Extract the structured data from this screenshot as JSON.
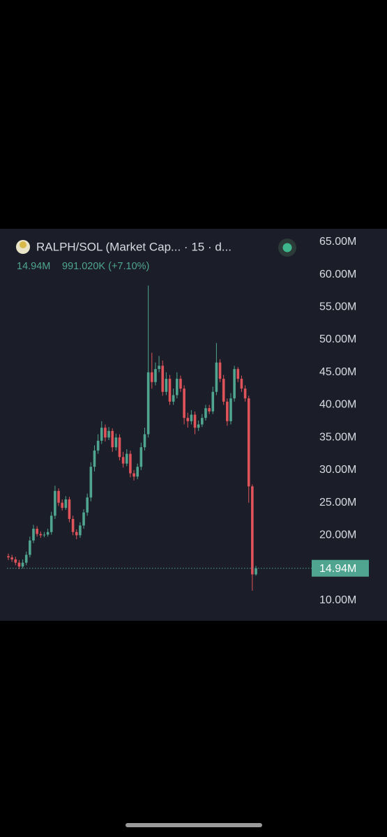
{
  "chart_data": {
    "type": "candlestick",
    "title": "RALPH/SOL (Market Cap... · 15 · d...",
    "change": "991.020K (+7.10%)",
    "last_price": {
      "value": 14.94,
      "label": "14.94M"
    },
    "up_color": "#4fa58f",
    "down_color": "#e0535a",
    "ylim": [
      7.1,
      66.8
    ],
    "yticks": [
      {
        "value": 10,
        "label": "10.00M"
      },
      {
        "value": 20,
        "label": "20.00M"
      },
      {
        "value": 25,
        "label": "25.00M"
      },
      {
        "value": 30,
        "label": "30.00M"
      },
      {
        "value": 35,
        "label": "35.00M"
      },
      {
        "value": 40,
        "label": "40.00M"
      },
      {
        "value": 45,
        "label": "45.00M"
      },
      {
        "value": 50,
        "label": "50.00M"
      },
      {
        "value": 55,
        "label": "55.00M"
      },
      {
        "value": 60,
        "label": "60.00M"
      },
      {
        "value": 65,
        "label": "65.00M"
      }
    ],
    "open": [
      16.8,
      16.6,
      16.3,
      15.8,
      15.2,
      15.8,
      17.0,
      19.2,
      21.0,
      20.2,
      20.0,
      20.1,
      20.5,
      23.0,
      26.8,
      25.0,
      24.2,
      25.5,
      22.5,
      20.5,
      20.0,
      21.5,
      23.5,
      25.8,
      30.5,
      33.0,
      34.5,
      36.5,
      35.0,
      36.0,
      33.5,
      35.0,
      32.0,
      31.0,
      32.5,
      29.5,
      29.0,
      30.5,
      33.5,
      35.5,
      45.0,
      43.5,
      45.5,
      46.0,
      42.0,
      44.0,
      40.5,
      41.5,
      44.0,
      42.5,
      38.0,
      37.5,
      38.5,
      36.5,
      37.0,
      38.0,
      39.5,
      39.0,
      42.0,
      46.5,
      44.0,
      40.5,
      37.5,
      41.0,
      45.5,
      44.0,
      42.5,
      41.0,
      27.5,
      14.0
    ],
    "high": [
      17.2,
      17.0,
      16.7,
      16.2,
      16.3,
      17.5,
      19.8,
      21.6,
      21.4,
      20.6,
      20.5,
      21.0,
      23.6,
      27.6,
      27.2,
      25.5,
      26.0,
      25.9,
      23.0,
      20.9,
      22.0,
      24.0,
      26.4,
      31.2,
      33.8,
      35.5,
      37.5,
      37.0,
      36.6,
      36.4,
      35.6,
      35.5,
      32.8,
      33.2,
      33.0,
      30.0,
      31.0,
      34.2,
      36.5,
      58.3,
      48.0,
      46.5,
      47.5,
      46.8,
      45.0,
      44.6,
      42.5,
      45.0,
      44.5,
      43.0,
      38.8,
      39.2,
      39.0,
      37.6,
      38.6,
      40.0,
      40.0,
      42.8,
      49.5,
      47.0,
      44.6,
      41.0,
      41.8,
      46.0,
      45.8,
      44.5,
      43.0,
      41.4,
      27.8,
      15.3
    ],
    "low": [
      16.2,
      15.9,
      15.4,
      14.8,
      14.9,
      15.4,
      16.6,
      18.8,
      19.8,
      19.6,
      19.7,
      19.8,
      20.1,
      22.5,
      24.5,
      23.8,
      23.9,
      22.0,
      20.0,
      19.4,
      19.6,
      21.0,
      23.0,
      25.2,
      29.8,
      32.5,
      34.0,
      34.4,
      34.6,
      32.8,
      33.0,
      31.5,
      30.4,
      30.6,
      28.9,
      28.4,
      28.6,
      30.0,
      33.0,
      35.0,
      42.5,
      43.0,
      45.0,
      41.4,
      41.5,
      40.0,
      40.0,
      41.0,
      42.0,
      37.0,
      36.5,
      37.0,
      35.5,
      36.0,
      36.6,
      37.6,
      38.6,
      38.6,
      41.5,
      43.5,
      40.0,
      36.8,
      37.0,
      40.5,
      43.5,
      42.0,
      40.5,
      25.0,
      11.5,
      13.8
    ],
    "close": [
      16.6,
      16.3,
      15.8,
      15.2,
      15.8,
      17.0,
      19.2,
      21.0,
      20.2,
      20.0,
      20.1,
      20.5,
      23.0,
      26.8,
      25.0,
      24.2,
      25.5,
      22.5,
      20.5,
      20.0,
      21.5,
      23.5,
      25.8,
      30.5,
      33.0,
      34.5,
      36.5,
      35.0,
      36.0,
      33.5,
      35.0,
      32.0,
      31.0,
      32.5,
      29.5,
      29.0,
      30.5,
      33.5,
      35.5,
      45.0,
      43.5,
      45.5,
      46.0,
      42.0,
      44.0,
      40.5,
      41.5,
      44.0,
      42.5,
      38.0,
      37.5,
      38.5,
      36.5,
      37.0,
      38.0,
      39.5,
      39.0,
      42.0,
      46.5,
      44.0,
      40.5,
      37.5,
      41.0,
      45.5,
      44.0,
      42.5,
      41.0,
      27.5,
      14.0,
      14.94
    ]
  }
}
